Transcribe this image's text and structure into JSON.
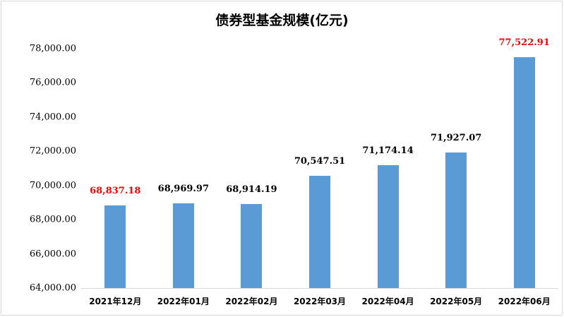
{
  "chart_data": {
    "type": "bar",
    "title": "债券型基金规模(亿元)",
    "xlabel": "",
    "ylabel": "",
    "ylim": [
      64000,
      78000
    ],
    "yticks": [
      "64,000.00",
      "66,000.00",
      "68,000.00",
      "70,000.00",
      "72,000.00",
      "74,000.00",
      "76,000.00",
      "78,000.00"
    ],
    "ytick_values": [
      64000,
      66000,
      68000,
      70000,
      72000,
      74000,
      76000,
      78000
    ],
    "categories": [
      "2021年12月",
      "2022年01月",
      "2022年02月",
      "2022年03月",
      "2022年04月",
      "2022年05月",
      "2022年06月"
    ],
    "values": [
      68837.18,
      68969.97,
      68914.19,
      70547.51,
      71174.14,
      71927.07,
      77522.91
    ],
    "value_labels": [
      "68,837.18",
      "68,969.97",
      "68,914.19",
      "70,547.51",
      "71,174.14",
      "71,927.07",
      "77,522.91"
    ],
    "label_colors": [
      "#ff0000",
      "#000000",
      "#000000",
      "#000000",
      "#000000",
      "#000000",
      "#ff0000"
    ],
    "bar_color": "#5b9bd5",
    "grid": false,
    "legend": null
  }
}
